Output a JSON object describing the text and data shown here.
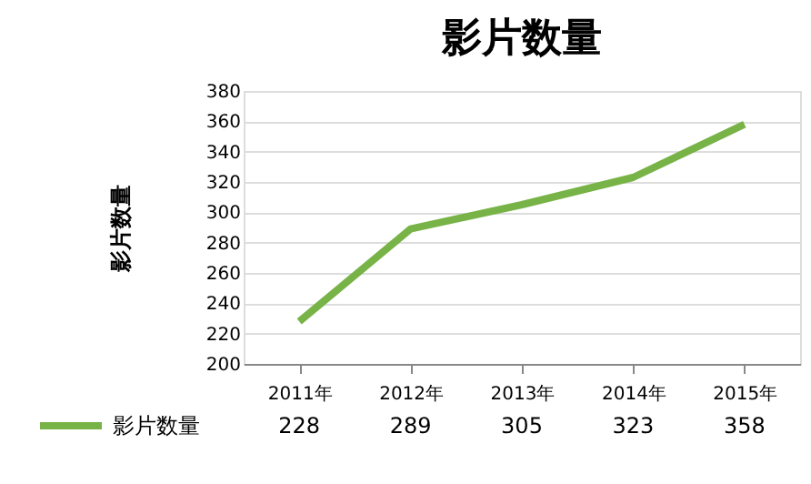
{
  "chart_data": {
    "type": "line",
    "title": "影片数量",
    "ylabel": "影片数量",
    "categories": [
      "2011年",
      "2012年",
      "2013年",
      "2014年",
      "2015年"
    ],
    "series": [
      {
        "name": "影片数量",
        "color": "#77b347",
        "values": [
          228,
          289,
          305,
          323,
          358
        ]
      }
    ],
    "ylim": [
      200,
      380
    ],
    "yticks": [
      200,
      220,
      240,
      260,
      280,
      300,
      320,
      340,
      360,
      380
    ],
    "grid": "y",
    "legend": "bottom",
    "data_labels": true,
    "marker": "none",
    "line_style": "solid"
  }
}
